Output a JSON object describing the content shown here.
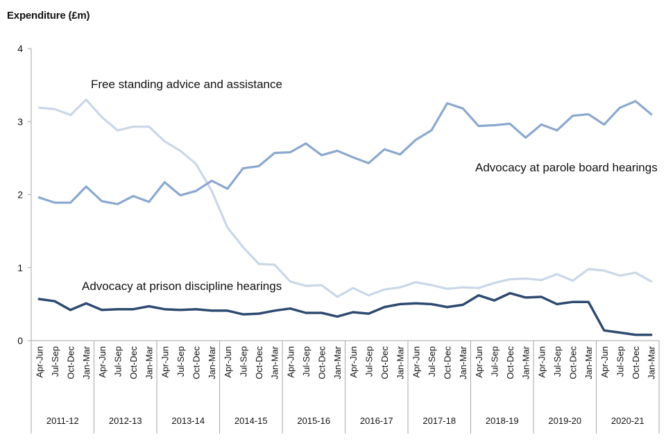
{
  "chart_data": {
    "type": "line",
    "ylabel": "Expenditure (£m)",
    "ylim": [
      0,
      4
    ],
    "yticks": [
      "0",
      "1",
      "2",
      "3",
      "4"
    ],
    "grid": false,
    "categories": [
      "Apr-Jun",
      "Jul-Sep",
      "Oct-Dec",
      "Jan-Mar",
      "Apr-Jun",
      "Jul-Sep",
      "Oct-Dec",
      "Jan-Mar",
      "Apr-Jun",
      "Jul-Sep",
      "Oct-Dec",
      "Jan-Mar",
      "Apr-Jun",
      "Jul-Sep",
      "Oct-Dec",
      "Jan-Mar",
      "Apr-Jun",
      "Jul-Sep",
      "Oct-Dec",
      "Jan-Mar",
      "Apr-Jun",
      "Jul-Sep",
      "Oct-Dec",
      "Jan-Mar",
      "Apr-Jun",
      "Jul-Sep",
      "Oct-Dec",
      "Jan-Mar",
      "Apr-Jun",
      "Jul-Sep",
      "Oct-Dec",
      "Jan-Mar",
      "Apr-Jun",
      "Jul-Sep",
      "Oct-Dec",
      "Jan-Mar",
      "Apr-Jun",
      "Jul-Sep",
      "Oct-Dec",
      "Jan-Mar"
    ],
    "groups": [
      "2011-12",
      "2012-13",
      "2013-14",
      "2014-15",
      "2015-16",
      "2016-17",
      "2017-18",
      "2018-19",
      "2019-20",
      "2020-21"
    ],
    "series": [
      {
        "name": "Free standing advice and assistance",
        "color": "#c9d7e8",
        "values": [
          3.19,
          3.17,
          3.09,
          3.3,
          3.06,
          2.88,
          2.93,
          2.93,
          2.73,
          2.6,
          2.42,
          2.05,
          1.55,
          1.28,
          1.05,
          1.04,
          0.81,
          0.75,
          0.76,
          0.6,
          0.72,
          0.62,
          0.7,
          0.73,
          0.8,
          0.76,
          0.71,
          0.73,
          0.72,
          0.79,
          0.84,
          0.85,
          0.83,
          0.91,
          0.82,
          0.98,
          0.96,
          0.89,
          0.93,
          0.81
        ]
      },
      {
        "name": "Advocacy at parole board hearings",
        "color": "#8aa8cf",
        "values": [
          1.96,
          1.89,
          1.89,
          2.11,
          1.91,
          1.87,
          1.98,
          1.9,
          2.17,
          1.99,
          2.05,
          2.19,
          2.08,
          2.36,
          2.39,
          2.57,
          2.58,
          2.7,
          2.54,
          2.6,
          2.51,
          2.43,
          2.62,
          2.55,
          2.75,
          2.88,
          3.25,
          3.18,
          2.94,
          2.95,
          2.97,
          2.78,
          2.96,
          2.88,
          3.08,
          3.1,
          2.96,
          3.19,
          3.28,
          3.1
        ]
      },
      {
        "name": "Advocacy at prison discipline hearings",
        "color": "#2e4a70",
        "values": [
          0.57,
          0.54,
          0.42,
          0.51,
          0.42,
          0.43,
          0.43,
          0.47,
          0.43,
          0.42,
          0.43,
          0.41,
          0.41,
          0.36,
          0.37,
          0.41,
          0.44,
          0.38,
          0.38,
          0.33,
          0.39,
          0.37,
          0.46,
          0.5,
          0.51,
          0.5,
          0.46,
          0.49,
          0.62,
          0.55,
          0.65,
          0.59,
          0.6,
          0.5,
          0.53,
          0.53,
          0.14,
          0.11,
          0.08,
          0.08
        ]
      }
    ]
  }
}
